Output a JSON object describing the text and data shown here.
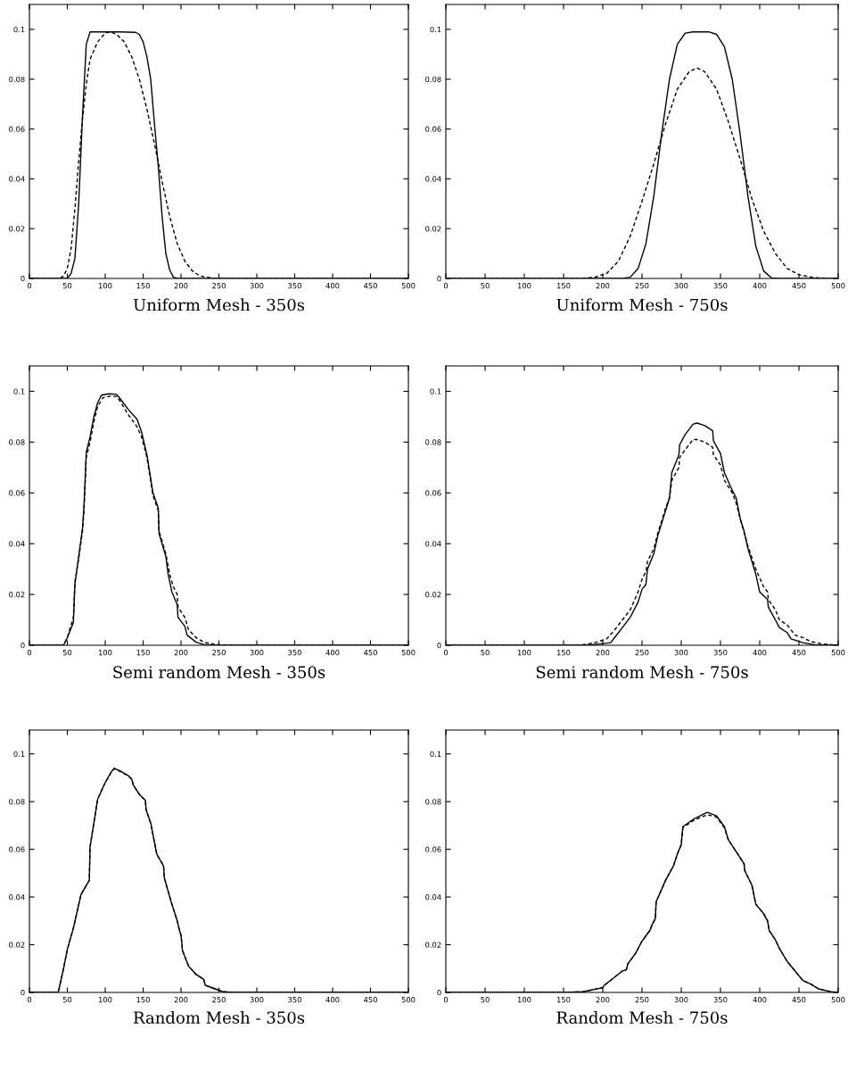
{
  "chart_data": [
    {
      "type": "line",
      "title": "Uniform Mesh - 350s",
      "xlim": [
        0,
        500
      ],
      "ylim": [
        0,
        0.11
      ],
      "xticks": [
        0,
        50,
        100,
        150,
        200,
        250,
        300,
        350,
        400,
        450,
        500
      ],
      "yticks": [
        0,
        0.02,
        0.04,
        0.06,
        0.08,
        0.1
      ],
      "series": [
        {
          "color": "#000000",
          "line_style": "solid",
          "x": [
            0,
            45,
            50,
            55,
            60,
            65,
            70,
            75,
            80,
            100,
            120,
            140,
            145,
            150,
            155,
            160,
            165,
            170,
            175,
            180,
            185,
            190,
            195,
            500
          ],
          "values": [
            0,
            0,
            0,
            0.002,
            0.008,
            0.03,
            0.065,
            0.094,
            0.099,
            0.099,
            0.099,
            0.0988,
            0.098,
            0.095,
            0.089,
            0.08,
            0.062,
            0.045,
            0.025,
            0.01,
            0.0035,
            0.0005,
            0,
            0
          ]
        },
        {
          "color": "#000000",
          "line_style": "dashed",
          "x": [
            0,
            40,
            45,
            50,
            55,
            60,
            65,
            70,
            75,
            80,
            90,
            100,
            107,
            115,
            125,
            135,
            145,
            155,
            165,
            175,
            185,
            195,
            205,
            215,
            225,
            240,
            250,
            500
          ],
          "values": [
            0,
            0,
            0.001,
            0.004,
            0.012,
            0.028,
            0.047,
            0.064,
            0.078,
            0.088,
            0.095,
            0.0985,
            0.099,
            0.098,
            0.095,
            0.089,
            0.08,
            0.068,
            0.054,
            0.039,
            0.025,
            0.014,
            0.007,
            0.003,
            0.001,
            0.0002,
            0,
            0
          ]
        }
      ]
    },
    {
      "type": "line",
      "title": "Uniform Mesh - 750s",
      "xlim": [
        0,
        500
      ],
      "ylim": [
        0,
        0.11
      ],
      "xticks": [
        0,
        50,
        100,
        150,
        200,
        250,
        300,
        350,
        400,
        450,
        500
      ],
      "yticks": [
        0,
        0.02,
        0.04,
        0.06,
        0.08,
        0.1
      ],
      "series": [
        {
          "color": "#000000",
          "line_style": "solid",
          "x": [
            0,
            225,
            235,
            245,
            255,
            265,
            275,
            285,
            295,
            305,
            315,
            335,
            345,
            355,
            365,
            375,
            385,
            395,
            405,
            415,
            425,
            500
          ],
          "values": [
            0,
            0,
            0.0005,
            0.004,
            0.014,
            0.033,
            0.058,
            0.08,
            0.094,
            0.0985,
            0.099,
            0.099,
            0.098,
            0.093,
            0.08,
            0.058,
            0.033,
            0.013,
            0.003,
            0.0002,
            0,
            0
          ]
        },
        {
          "color": "#000000",
          "line_style": "dashed",
          "x": [
            0,
            170,
            190,
            205,
            220,
            235,
            250,
            265,
            280,
            295,
            310,
            320,
            330,
            345,
            360,
            375,
            390,
            405,
            420,
            435,
            450,
            470,
            490,
            500
          ],
          "values": [
            0,
            0,
            0.0005,
            0.002,
            0.007,
            0.017,
            0.031,
            0.046,
            0.062,
            0.076,
            0.083,
            0.0845,
            0.083,
            0.076,
            0.063,
            0.048,
            0.032,
            0.019,
            0.01,
            0.004,
            0.0015,
            0.0003,
            0,
            0
          ]
        }
      ]
    },
    {
      "type": "line",
      "title": "Semi random Mesh - 350s",
      "xlim": [
        0,
        500
      ],
      "ylim": [
        0,
        0.11
      ],
      "xticks": [
        0,
        50,
        100,
        150,
        200,
        250,
        300,
        350,
        400,
        450,
        500
      ],
      "yticks": [
        0,
        0.02,
        0.04,
        0.06,
        0.08,
        0.1
      ],
      "series": [
        {
          "color": "#000000",
          "line_style": "solid",
          "x": [
            0,
            45,
            50,
            58,
            60,
            65,
            70,
            72,
            75,
            80,
            85,
            90,
            95,
            105,
            115,
            120,
            130,
            142,
            148,
            155,
            163,
            170,
            171,
            178,
            180,
            183,
            188,
            195,
            196,
            205,
            208,
            220,
            230,
            245,
            500
          ],
          "values": [
            0,
            0,
            0.003,
            0.009,
            0.024,
            0.035,
            0.046,
            0.055,
            0.076,
            0.082,
            0.09,
            0.0955,
            0.0985,
            0.099,
            0.0988,
            0.097,
            0.093,
            0.089,
            0.084,
            0.075,
            0.06,
            0.054,
            0.044,
            0.037,
            0.035,
            0.028,
            0.021,
            0.016,
            0.011,
            0.0075,
            0.004,
            0.0012,
            0.0003,
            0,
            0
          ]
        },
        {
          "color": "#000000",
          "line_style": "dashed",
          "x": [
            0,
            45,
            50,
            58,
            60,
            65,
            70,
            72,
            75,
            80,
            85,
            90,
            97,
            105,
            115,
            120,
            130,
            142,
            148,
            155,
            163,
            170,
            171,
            178,
            180,
            185,
            190,
            195,
            196,
            205,
            210,
            220,
            230,
            245,
            260,
            500
          ],
          "values": [
            0,
            0,
            0.003,
            0.011,
            0.025,
            0.034,
            0.045,
            0.053,
            0.074,
            0.08,
            0.088,
            0.094,
            0.0975,
            0.098,
            0.098,
            0.096,
            0.091,
            0.086,
            0.082,
            0.074,
            0.059,
            0.053,
            0.045,
            0.038,
            0.036,
            0.028,
            0.023,
            0.02,
            0.015,
            0.011,
            0.006,
            0.003,
            0.0012,
            0.0003,
            0,
            0
          ]
        }
      ]
    },
    {
      "type": "line",
      "title": "Semi random Mesh - 750s",
      "xlim": [
        0,
        500
      ],
      "ylim": [
        0,
        0.11
      ],
      "xticks": [
        0,
        50,
        100,
        150,
        200,
        250,
        300,
        350,
        400,
        450,
        500
      ],
      "yticks": [
        0,
        0.02,
        0.04,
        0.06,
        0.08,
        0.1
      ],
      "series": [
        {
          "color": "#000000",
          "line_style": "solid",
          "x": [
            0,
            180,
            195,
            210,
            215,
            225,
            235,
            245,
            250,
            255,
            257,
            265,
            270,
            280,
            285,
            288,
            297,
            298,
            305,
            315,
            320,
            330,
            340,
            341,
            350,
            355,
            365,
            370,
            375,
            380,
            385,
            395,
            400,
            410,
            411,
            420,
            425,
            435,
            440,
            455,
            470,
            490,
            500
          ],
          "values": [
            0,
            0,
            0.0005,
            0.001,
            0.003,
            0.007,
            0.011,
            0.017,
            0.022,
            0.024,
            0.03,
            0.036,
            0.043,
            0.053,
            0.058,
            0.068,
            0.075,
            0.079,
            0.083,
            0.087,
            0.0875,
            0.0865,
            0.0845,
            0.0805,
            0.0755,
            0.068,
            0.061,
            0.058,
            0.05,
            0.045,
            0.038,
            0.028,
            0.021,
            0.018,
            0.015,
            0.01,
            0.007,
            0.005,
            0.0025,
            0.001,
            0.0002,
            0,
            0
          ]
        },
        {
          "color": "#000000",
          "line_style": "dashed",
          "x": [
            0,
            170,
            190,
            205,
            215,
            225,
            235,
            245,
            250,
            255,
            257,
            265,
            270,
            280,
            285,
            288,
            297,
            298,
            305,
            315,
            320,
            330,
            340,
            341,
            350,
            355,
            365,
            370,
            375,
            385,
            395,
            405,
            410,
            411,
            420,
            425,
            435,
            440,
            445,
            455,
            465,
            480,
            500
          ],
          "values": [
            0,
            0,
            0.001,
            0.0025,
            0.006,
            0.01,
            0.014,
            0.021,
            0.026,
            0.029,
            0.033,
            0.038,
            0.044,
            0.054,
            0.058,
            0.065,
            0.07,
            0.074,
            0.077,
            0.081,
            0.081,
            0.08,
            0.078,
            0.075,
            0.071,
            0.065,
            0.06,
            0.056,
            0.05,
            0.039,
            0.03,
            0.023,
            0.021,
            0.018,
            0.014,
            0.01,
            0.008,
            0.006,
            0.004,
            0.003,
            0.0015,
            0.0005,
            0
          ]
        }
      ]
    },
    {
      "type": "line",
      "title": "Random Mesh - 350s",
      "xlim": [
        0,
        500
      ],
      "ylim": [
        0,
        0.11
      ],
      "xticks": [
        0,
        50,
        100,
        150,
        200,
        250,
        300,
        350,
        400,
        450,
        500
      ],
      "yticks": [
        0,
        0.02,
        0.04,
        0.06,
        0.08,
        0.1
      ],
      "series": [
        {
          "color": "#000000",
          "line_style": "solid",
          "x": [
            0,
            38,
            45,
            50,
            58,
            68,
            79,
            80,
            82,
            90,
            100,
            108,
            112,
            120,
            130,
            135,
            137,
            145,
            153,
            154,
            160,
            168,
            177,
            178,
            187,
            195,
            198,
            200,
            202,
            210,
            220,
            230,
            232,
            245,
            255,
            270,
            500
          ],
          "values": [
            0,
            0,
            0.01,
            0.018,
            0.027,
            0.041,
            0.047,
            0.061,
            0.065,
            0.081,
            0.088,
            0.0925,
            0.094,
            0.0928,
            0.091,
            0.0895,
            0.087,
            0.083,
            0.0805,
            0.0765,
            0.071,
            0.058,
            0.053,
            0.048,
            0.038,
            0.03,
            0.026,
            0.024,
            0.0175,
            0.011,
            0.0075,
            0.0055,
            0.003,
            0.0015,
            0.0003,
            0,
            0
          ]
        },
        {
          "color": "#000000",
          "line_style": "dashed",
          "x": [
            0,
            38,
            45,
            50,
            58,
            68,
            79,
            80,
            82,
            90,
            100,
            108,
            112,
            120,
            130,
            135,
            137,
            145,
            153,
            154,
            160,
            168,
            177,
            178,
            187,
            195,
            198,
            200,
            202,
            210,
            220,
            230,
            232,
            245,
            255,
            270,
            500
          ],
          "values": [
            0,
            0,
            0.01,
            0.018,
            0.027,
            0.041,
            0.047,
            0.061,
            0.065,
            0.081,
            0.088,
            0.0923,
            0.0938,
            0.0926,
            0.0908,
            0.0893,
            0.087,
            0.083,
            0.0805,
            0.0765,
            0.071,
            0.058,
            0.053,
            0.048,
            0.038,
            0.03,
            0.026,
            0.024,
            0.0175,
            0.011,
            0.0075,
            0.0055,
            0.003,
            0.0015,
            0.0003,
            0,
            0
          ]
        }
      ]
    },
    {
      "type": "line",
      "title": "Random Mesh - 750s",
      "xlim": [
        0,
        500
      ],
      "ylim": [
        0,
        0.11
      ],
      "xticks": [
        0,
        50,
        100,
        150,
        200,
        250,
        300,
        350,
        400,
        450,
        500
      ],
      "yticks": [
        0,
        0.02,
        0.04,
        0.06,
        0.08,
        0.1
      ],
      "series": [
        {
          "color": "#000000",
          "line_style": "solid",
          "x": [
            0,
            150,
            175,
            200,
            202,
            225,
            230,
            232,
            242,
            250,
            260,
            263,
            267,
            268,
            280,
            290,
            295,
            300,
            302,
            315,
            333,
            345,
            355,
            360,
            370,
            380,
            381,
            390,
            395,
            405,
            410,
            412,
            420,
            425,
            435,
            445,
            455,
            465,
            475,
            490,
            500
          ],
          "values": [
            0,
            0,
            0.0003,
            0.002,
            0.003,
            0.009,
            0.0095,
            0.012,
            0.0165,
            0.0215,
            0.026,
            0.0285,
            0.031,
            0.038,
            0.047,
            0.053,
            0.058,
            0.062,
            0.0695,
            0.0725,
            0.0755,
            0.074,
            0.0695,
            0.064,
            0.059,
            0.054,
            0.051,
            0.045,
            0.037,
            0.033,
            0.03,
            0.026,
            0.022,
            0.0185,
            0.013,
            0.009,
            0.005,
            0.0035,
            0.0015,
            0.0003,
            0
          ]
        },
        {
          "color": "#000000",
          "line_style": "dashed",
          "x": [
            0,
            150,
            175,
            200,
            202,
            225,
            230,
            232,
            242,
            250,
            260,
            263,
            267,
            268,
            280,
            290,
            295,
            300,
            302,
            315,
            333,
            345,
            355,
            360,
            370,
            380,
            381,
            390,
            395,
            405,
            410,
            412,
            420,
            425,
            435,
            445,
            455,
            465,
            475,
            490,
            500
          ],
          "values": [
            0,
            0,
            0.0003,
            0.002,
            0.003,
            0.009,
            0.0095,
            0.012,
            0.0165,
            0.0215,
            0.026,
            0.0285,
            0.031,
            0.038,
            0.047,
            0.053,
            0.058,
            0.062,
            0.069,
            0.072,
            0.0745,
            0.0735,
            0.069,
            0.064,
            0.059,
            0.054,
            0.051,
            0.045,
            0.037,
            0.033,
            0.03,
            0.026,
            0.022,
            0.0185,
            0.013,
            0.009,
            0.005,
            0.0035,
            0.0015,
            0.0003,
            0
          ]
        }
      ]
    }
  ]
}
